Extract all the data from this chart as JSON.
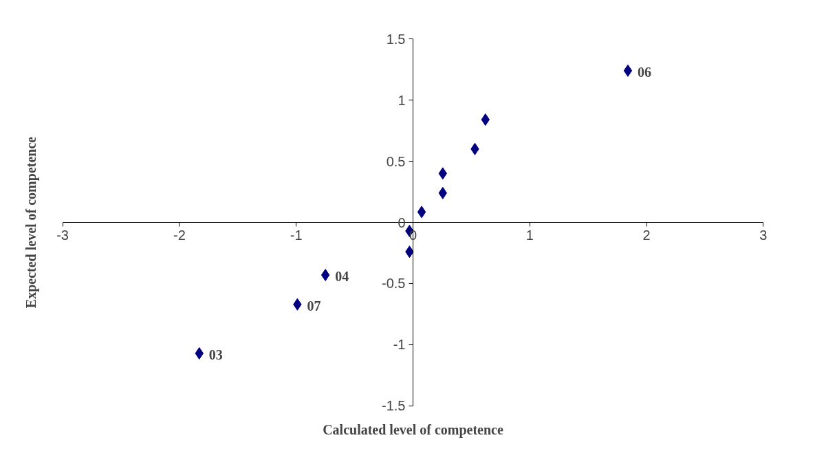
{
  "chart_data": {
    "type": "scatter",
    "xlabel": "Calculated level of competence",
    "ylabel": "Expected level of competence",
    "x": [
      1.84,
      0.62,
      0.53,
      0.255,
      0.255,
      0.074,
      -0.03,
      -0.03,
      -0.75,
      -0.99,
      -1.83
    ],
    "series": [
      {
        "color": "#000080",
        "values": [
          1.24,
          0.84,
          0.6,
          0.4,
          0.24,
          0.085,
          -0.07,
          -0.24,
          -0.43,
          -0.67,
          -1.07
        ]
      }
    ],
    "annotations": [
      {
        "text": "06",
        "x": 1.84,
        "y": 1.24
      },
      {
        "text": "04",
        "x": -0.75,
        "y": -0.43
      },
      {
        "text": "07",
        "x": -0.99,
        "y": -0.67
      },
      {
        "text": "03",
        "x": -1.83,
        "y": -1.07
      }
    ],
    "xlim": [
      -3,
      3
    ],
    "ylim": [
      -1.5,
      1.5
    ],
    "xticks": [
      -3,
      -2,
      -1,
      0,
      1,
      2,
      3
    ],
    "yticks": [
      -1.5,
      -1,
      -0.5,
      0,
      0.5,
      1,
      1.5
    ],
    "grid": false,
    "marker": "diamond"
  }
}
